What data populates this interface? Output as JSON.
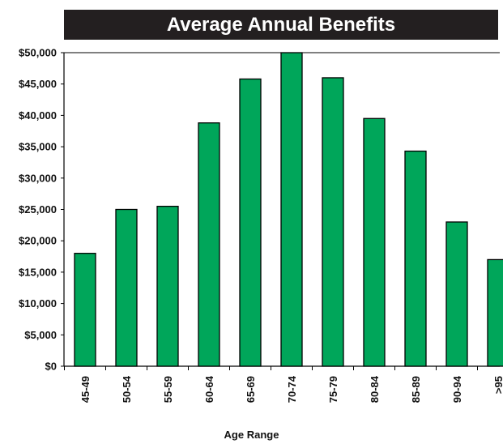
{
  "chart_data": {
    "type": "bar",
    "title": "Average Annual Benefits",
    "xlabel": "Age Range",
    "ylabel": "",
    "categories": [
      "45-49",
      "50-54",
      "55-59",
      "60-64",
      "65-69",
      "70-74",
      "75-79",
      "80-84",
      "85-89",
      "90-94",
      ">95"
    ],
    "values": [
      18000,
      25000,
      25500,
      38800,
      45800,
      50000,
      46000,
      39500,
      34300,
      23000,
      17000
    ],
    "ylim": [
      0,
      50000
    ],
    "yticks": [
      0,
      5000,
      10000,
      15000,
      20000,
      25000,
      30000,
      35000,
      40000,
      45000,
      50000
    ],
    "ytick_labels": [
      "$0",
      "$5,000",
      "$10,000",
      "$15,000",
      "$20,000",
      "$25,000",
      "$30,000",
      "$35,000",
      "$40,000",
      "$45,000",
      "$50,000"
    ],
    "grid": false,
    "legend": "none",
    "colors": {
      "bar": "#00a65a",
      "bar_outline": "#000000",
      "title_background": "#231f20",
      "title_text": "#ffffff"
    }
  }
}
